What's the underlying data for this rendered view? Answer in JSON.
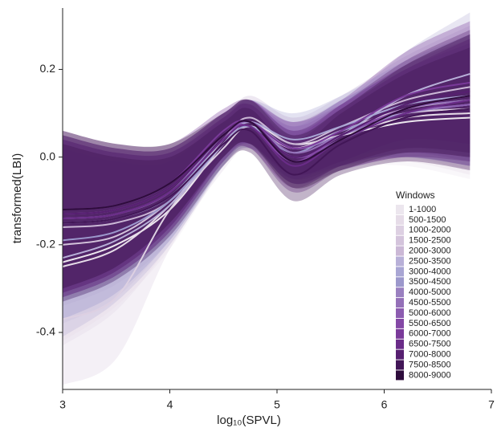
{
  "chart_data": {
    "type": "ribbon-line",
    "x_label": "log₁₀(SPVL)",
    "y_label": "transformed(LBI)",
    "legend_title": "Windows",
    "legend_position": "right",
    "xlim": [
      3,
      7
    ],
    "xticks": [
      3,
      4,
      5,
      6,
      7
    ],
    "ylim": [
      -0.53,
      0.34
    ],
    "yticks": [
      -0.4,
      -0.2,
      {
        "value": 0,
        "label": "0.0"
      },
      0.2
    ],
    "x": [
      3,
      3.5,
      4,
      4.5,
      4.75,
      5.15,
      5.6,
      6.2,
      6.8
    ],
    "series": [
      {
        "name": "1-1000",
        "color": "#ece6ee",
        "values": [
          -0.24,
          -0.2,
          -0.12,
          0.03,
          0.08,
          0.03,
          0.05,
          0.08,
          0.09
        ],
        "lower": [
          -0.42,
          -0.34,
          -0.21,
          -0.02,
          0.03,
          -0.03,
          -0.02,
          -0.02,
          -0.05
        ],
        "upper": [
          -0.06,
          -0.06,
          -0.03,
          0.08,
          0.13,
          0.09,
          0.12,
          0.18,
          0.23
        ]
      },
      {
        "name": "500-1500",
        "color": "#e6dce8",
        "values": [
          -0.25,
          -0.21,
          -0.11,
          0.03,
          0.07,
          0.02,
          0.05,
          0.09,
          0.1
        ],
        "lower": [
          -0.43,
          -0.35,
          -0.2,
          -0.02,
          0.02,
          -0.04,
          -0.02,
          -0.01,
          -0.04
        ],
        "upper": [
          -0.07,
          -0.07,
          -0.02,
          0.08,
          0.12,
          0.08,
          0.12,
          0.19,
          0.24
        ]
      },
      {
        "name": "1000-2000",
        "color": "#ddd0e2",
        "values": [
          -0.37,
          -0.32,
          -0.12,
          0.02,
          0.07,
          0.02,
          0.06,
          0.1,
          0.11
        ],
        "lower": [
          -0.52,
          -0.46,
          -0.21,
          -0.03,
          0.02,
          -0.04,
          -0.01,
          0.0,
          -0.03
        ],
        "upper": [
          -0.19,
          -0.18,
          -0.03,
          0.07,
          0.12,
          0.08,
          0.13,
          0.2,
          0.25
        ]
      },
      {
        "name": "1500-2500",
        "color": "#d4c4dc",
        "values": [
          -0.2,
          -0.18,
          -0.1,
          0.03,
          0.08,
          0.02,
          0.06,
          0.11,
          0.13
        ],
        "lower": [
          -0.38,
          -0.32,
          -0.19,
          -0.02,
          0.03,
          -0.04,
          -0.01,
          0.01,
          -0.01
        ],
        "upper": [
          -0.02,
          -0.04,
          -0.01,
          0.08,
          0.13,
          0.08,
          0.13,
          0.21,
          0.27
        ]
      },
      {
        "name": "2000-3000",
        "color": "#cbb8d6",
        "values": [
          -0.16,
          -0.15,
          -0.1,
          0.04,
          0.09,
          0.03,
          0.07,
          0.13,
          0.16
        ],
        "lower": [
          -0.34,
          -0.29,
          -0.19,
          -0.01,
          0.04,
          -0.03,
          0.0,
          0.03,
          0.02
        ],
        "upper": [
          0.02,
          -0.01,
          -0.01,
          0.09,
          0.14,
          0.09,
          0.14,
          0.23,
          0.3
        ]
      },
      {
        "name": "2500-3500",
        "color": "#b8b0d8",
        "values": [
          -0.23,
          -0.19,
          -0.11,
          0.03,
          0.08,
          0.0,
          0.05,
          0.14,
          0.19
        ],
        "lower": [
          -0.41,
          -0.33,
          -0.2,
          -0.02,
          0.03,
          -0.06,
          -0.02,
          0.04,
          0.05
        ],
        "upper": [
          -0.05,
          -0.05,
          -0.02,
          0.08,
          0.13,
          0.06,
          0.12,
          0.24,
          0.33
        ]
      },
      {
        "name": "3000-4000",
        "color": "#a9a6d4",
        "values": [
          -0.15,
          -0.14,
          -0.09,
          0.04,
          0.08,
          0.04,
          0.07,
          0.12,
          0.14
        ],
        "lower": [
          -0.33,
          -0.28,
          -0.18,
          -0.01,
          0.03,
          -0.02,
          0.0,
          0.02,
          0.0
        ],
        "upper": [
          0.03,
          0.0,
          0.0,
          0.09,
          0.13,
          0.1,
          0.14,
          0.22,
          0.28
        ]
      },
      {
        "name": "3500-4500",
        "color": "#9c98cc",
        "values": [
          -0.19,
          -0.17,
          -0.1,
          0.03,
          0.07,
          0.01,
          0.06,
          0.1,
          0.12
        ],
        "lower": [
          -0.37,
          -0.31,
          -0.19,
          -0.02,
          0.02,
          -0.05,
          -0.01,
          0.0,
          -0.02
        ],
        "upper": [
          -0.01,
          -0.03,
          -0.01,
          0.08,
          0.12,
          0.07,
          0.13,
          0.2,
          0.26
        ]
      },
      {
        "name": "4000-5000",
        "color": "#9a80c0",
        "values": [
          -0.14,
          -0.13,
          -0.08,
          0.05,
          0.08,
          0.02,
          0.05,
          0.1,
          0.12
        ],
        "lower": [
          -0.32,
          -0.27,
          -0.17,
          0.0,
          0.03,
          -0.04,
          -0.02,
          0.0,
          -0.02
        ],
        "upper": [
          0.04,
          0.01,
          0.01,
          0.1,
          0.13,
          0.08,
          0.12,
          0.2,
          0.26
        ]
      },
      {
        "name": "4500-5500",
        "color": "#9470b8",
        "values": [
          -0.13,
          -0.12,
          -0.07,
          0.05,
          0.08,
          0.01,
          0.05,
          0.11,
          0.13
        ],
        "lower": [
          -0.31,
          -0.26,
          -0.16,
          0.0,
          0.03,
          -0.05,
          -0.02,
          0.01,
          -0.01
        ],
        "upper": [
          0.05,
          0.02,
          0.02,
          0.1,
          0.13,
          0.07,
          0.12,
          0.21,
          0.27
        ]
      },
      {
        "name": "5000-6000",
        "color": "#8c5cb0",
        "values": [
          -0.14,
          -0.13,
          -0.08,
          0.04,
          0.08,
          0.0,
          0.04,
          0.1,
          0.12
        ],
        "lower": [
          -0.32,
          -0.27,
          -0.17,
          -0.01,
          0.03,
          -0.06,
          -0.03,
          0.0,
          -0.02
        ],
        "upper": [
          0.04,
          0.01,
          0.01,
          0.09,
          0.13,
          0.06,
          0.11,
          0.2,
          0.26
        ]
      },
      {
        "name": "5500-6500",
        "color": "#8448a6",
        "values": [
          -0.13,
          -0.12,
          -0.07,
          0.05,
          0.07,
          -0.01,
          0.05,
          0.11,
          0.14
        ],
        "lower": [
          -0.31,
          -0.26,
          -0.16,
          0.0,
          0.02,
          -0.07,
          -0.02,
          0.01,
          0.0
        ],
        "upper": [
          0.05,
          0.02,
          0.02,
          0.1,
          0.12,
          0.05,
          0.12,
          0.21,
          0.28
        ]
      },
      {
        "name": "6000-7000",
        "color": "#7a3a9a",
        "values": [
          -0.12,
          -0.11,
          -0.06,
          0.06,
          0.08,
          0.02,
          0.06,
          0.14,
          0.17
        ],
        "lower": [
          -0.3,
          -0.25,
          -0.15,
          0.01,
          0.03,
          -0.04,
          -0.01,
          0.04,
          0.03
        ],
        "upper": [
          0.06,
          0.03,
          0.03,
          0.11,
          0.13,
          0.08,
          0.13,
          0.24,
          0.31
        ]
      },
      {
        "name": "6500-7500",
        "color": "#6a2c88",
        "values": [
          -0.14,
          -0.13,
          -0.08,
          0.04,
          0.07,
          -0.02,
          0.04,
          0.1,
          0.13
        ],
        "lower": [
          -0.32,
          -0.27,
          -0.17,
          -0.01,
          0.02,
          -0.08,
          -0.03,
          0.0,
          -0.01
        ],
        "upper": [
          0.04,
          0.01,
          0.01,
          0.09,
          0.12,
          0.04,
          0.11,
          0.2,
          0.27
        ]
      },
      {
        "name": "7000-8000",
        "color": "#561f70",
        "values": [
          -0.13,
          -0.12,
          -0.07,
          0.05,
          0.08,
          0.0,
          0.05,
          0.12,
          0.15
        ],
        "lower": [
          -0.31,
          -0.26,
          -0.16,
          0.0,
          0.03,
          -0.06,
          -0.02,
          0.02,
          0.01
        ],
        "upper": [
          0.05,
          0.02,
          0.02,
          0.1,
          0.13,
          0.06,
          0.12,
          0.22,
          0.29
        ]
      },
      {
        "name": "7500-8500",
        "color": "#421657",
        "values": [
          -0.15,
          -0.14,
          -0.09,
          0.03,
          0.06,
          -0.04,
          0.03,
          0.09,
          0.11
        ],
        "lower": [
          -0.33,
          -0.28,
          -0.18,
          -0.02,
          0.01,
          -0.1,
          -0.04,
          -0.01,
          -0.03
        ],
        "upper": [
          0.03,
          0.0,
          0.0,
          0.08,
          0.11,
          0.02,
          0.1,
          0.19,
          0.25
        ]
      },
      {
        "name": "8000-9000",
        "color": "#2e0c3c",
        "values": [
          -0.12,
          -0.11,
          -0.06,
          0.05,
          0.08,
          -0.01,
          0.04,
          0.11,
          0.14
        ],
        "lower": [
          -0.3,
          -0.25,
          -0.15,
          0.0,
          0.03,
          -0.07,
          -0.03,
          0.01,
          0.0
        ],
        "upper": [
          0.06,
          0.03,
          0.03,
          0.1,
          0.13,
          0.05,
          0.11,
          0.21,
          0.28
        ]
      }
    ]
  }
}
